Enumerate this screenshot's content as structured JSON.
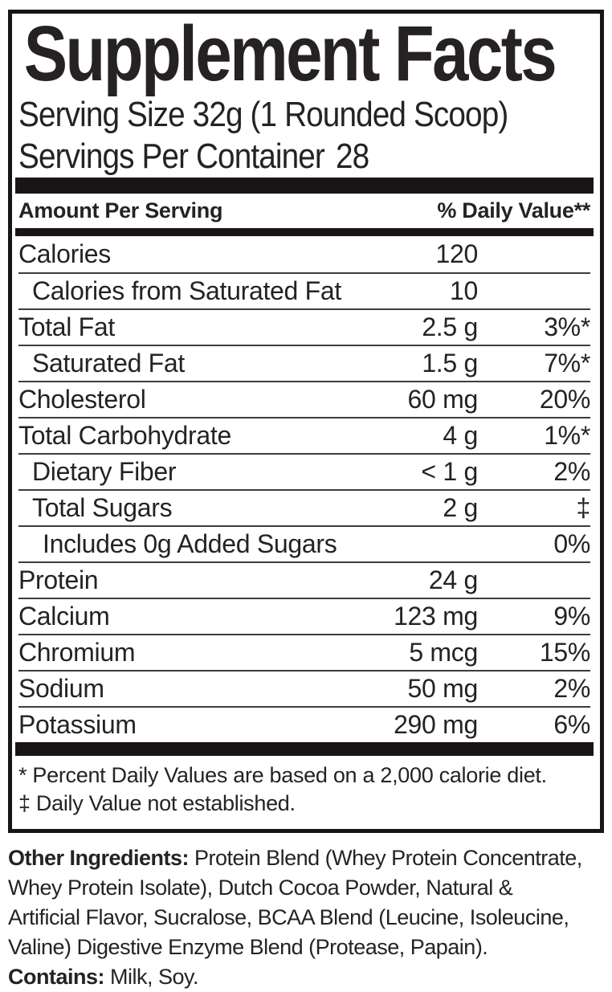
{
  "panel": {
    "title": "Supplement Facts",
    "serving_size": "Serving Size 32g (1 Rounded Scoop)",
    "servings_label": "Servings Per Container",
    "servings_value": "28",
    "header": {
      "amount": "Amount Per Serving",
      "daily_value": "% Daily Value**"
    },
    "rows": [
      {
        "label": "Calories",
        "amount": "120",
        "dv": "",
        "indent": 0
      },
      {
        "label": "Calories from Saturated Fat",
        "amount": "10",
        "dv": "",
        "indent": 1
      },
      {
        "label": "Total Fat",
        "amount": "2.5 g",
        "dv": "3%*",
        "indent": 0
      },
      {
        "label": "Saturated Fat",
        "amount": "1.5 g",
        "dv": "7%*",
        "indent": 1
      },
      {
        "label": "Cholesterol",
        "amount": "60 mg",
        "dv": "20%",
        "indent": 0
      },
      {
        "label": "Total Carbohydrate",
        "amount": "4 g",
        "dv": "1%*",
        "indent": 0
      },
      {
        "label": "Dietary Fiber",
        "amount": "< 1 g",
        "dv": "2%",
        "indent": 1
      },
      {
        "label": "Total Sugars",
        "amount": "2 g",
        "dv": "‡",
        "indent": 1
      },
      {
        "label": "Includes 0g Added Sugars",
        "amount": "",
        "dv": "0%",
        "indent": 2
      },
      {
        "label": "Protein",
        "amount": "24 g",
        "dv": "",
        "indent": 0
      },
      {
        "label": "Calcium",
        "amount": "123 mg",
        "dv": "9%",
        "indent": 0
      },
      {
        "label": "Chromium",
        "amount": "5 mcg",
        "dv": "15%",
        "indent": 0
      },
      {
        "label": "Sodium",
        "amount": "50 mg",
        "dv": "2%",
        "indent": 0
      },
      {
        "label": "Potassium",
        "amount": "290 mg",
        "dv": "6%",
        "indent": 0
      }
    ],
    "footnotes": [
      "* Percent Daily Values are based on a 2,000 calorie diet.",
      "‡ Daily Value not established."
    ]
  },
  "below": {
    "other_ingredients": {
      "label": "Other Ingredients:",
      "line1": " Protein Blend (Whey Protein Concentrate,",
      "line2": "Whey Protein Isolate), Dutch Cocoa Powder, Natural &",
      "line3": "Artificial Flavor, Sucralose, BCAA Blend (Leucine, Isoleucine,",
      "line4": "Valine) Digestive Enzyme Blend (Protease, Papain)."
    },
    "contains": {
      "label": "Contains:",
      "text": " Milk, Soy."
    }
  },
  "colors": {
    "text": "#262223",
    "bar": "#191516",
    "separator": "#3d3d3d",
    "background": "#ffffff"
  }
}
